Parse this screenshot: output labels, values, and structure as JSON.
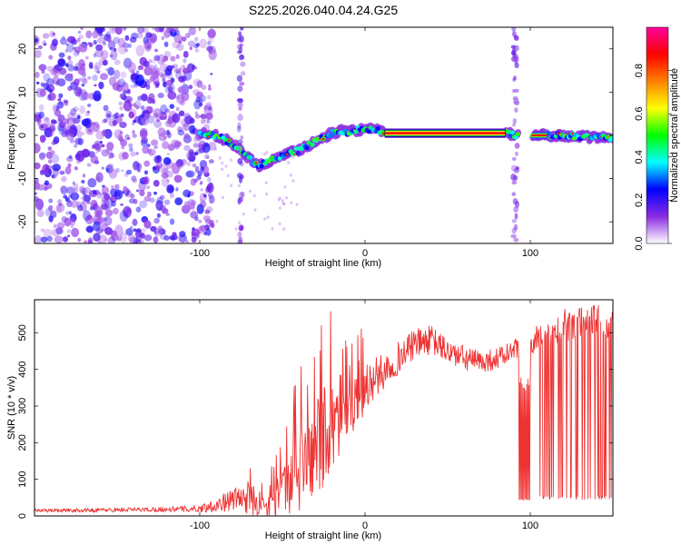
{
  "title": "S225.2026.040.04.24.G25",
  "chart_data": [
    {
      "type": "heatmap",
      "title": "S225.2026.040.04.24.G25",
      "xlabel": "Height of straight line (km)",
      "ylabel": "Frequency (Hz)",
      "xlim": [
        -200,
        150
      ],
      "ylim": [
        -25,
        25
      ],
      "xticks": [
        -100,
        0,
        100
      ],
      "yticks": [
        -20,
        -10,
        0,
        10,
        20
      ],
      "colorbar": {
        "label": "Normalized spectral amplitude",
        "range": [
          0,
          1
        ],
        "ticks": [
          0.0,
          0.2,
          0.4,
          0.6,
          0.8
        ],
        "tick_labels": [
          "0.0",
          "0.2",
          "0.4",
          "0.6",
          "0.8"
        ],
        "colormap": [
          "#ffffff",
          "#8a2be2",
          "#0000ff",
          "#00ffff",
          "#00ff00",
          "#ffff00",
          "#ff8000",
          "#ff0000",
          "#ff00a0"
        ]
      },
      "noise_region": {
        "x": [
          -200,
          -100
        ],
        "y": [
          -25,
          25
        ]
      },
      "ridge": {
        "x": [
          -100,
          -90,
          -82,
          -75,
          -70,
          -65,
          -60,
          -55,
          -50,
          -45,
          -40,
          -35,
          -30,
          -25,
          -20,
          -15,
          -10,
          -5,
          0,
          5,
          10,
          15,
          30,
          50,
          70,
          85,
          92,
          100,
          110,
          120,
          130,
          140,
          150
        ],
        "y": [
          0.5,
          0.0,
          -1.5,
          -3.5,
          -5.5,
          -7.0,
          -6.5,
          -5.5,
          -4.5,
          -4.0,
          -3.5,
          -2.5,
          -1.5,
          -0.5,
          0.5,
          1.0,
          0.8,
          1.2,
          1.5,
          1.2,
          1.0,
          0.5,
          0.5,
          0.5,
          0.5,
          0.5,
          0.0,
          0.0,
          0.0,
          0.0,
          -0.3,
          -0.5,
          -0.6
        ]
      },
      "strong_segment": {
        "x": [
          12,
          85
        ],
        "y": 0.5
      },
      "vertical_streaks": [
        {
          "x": -75
        },
        {
          "x": 91
        }
      ]
    },
    {
      "type": "line",
      "xlabel": "Height of straight line (km)",
      "ylabel": "SNR (10 * v/v)",
      "xlim": [
        -200,
        150
      ],
      "ylim": [
        0,
        590
      ],
      "xticks": [
        -100,
        0,
        100
      ],
      "yticks": [
        0,
        100,
        200,
        300,
        400,
        500
      ],
      "color": "#ee3333",
      "series": [
        {
          "name": "SNR",
          "x": [
            -200,
            -180,
            -160,
            -140,
            -120,
            -100,
            -90,
            -80,
            -70,
            -60,
            -55,
            -50,
            -45,
            -40,
            -35,
            -30,
            -25,
            -20,
            -15,
            -10,
            -5,
            0,
            5,
            10,
            20,
            30,
            40,
            50,
            60,
            70,
            80,
            85,
            90,
            100,
            110,
            120,
            130,
            140,
            150
          ],
          "y": [
            15,
            15,
            16,
            17,
            18,
            20,
            30,
            45,
            50,
            25,
            40,
            55,
            80,
            120,
            160,
            180,
            220,
            250,
            280,
            300,
            320,
            350,
            370,
            390,
            430,
            470,
            480,
            450,
            430,
            420,
            430,
            440,
            450,
            470,
            500,
            520,
            530,
            540,
            520
          ],
          "amplitude": [
            5,
            5,
            6,
            6,
            7,
            10,
            20,
            30,
            45,
            35,
            50,
            70,
            100,
            120,
            140,
            150,
            140,
            130,
            110,
            90,
            80,
            70,
            60,
            50,
            45,
            40,
            40,
            35,
            35,
            30,
            30,
            30,
            30,
            35,
            40,
            45,
            45,
            40,
            40
          ]
        }
      ],
      "dropouts": [
        {
          "x": [
            93,
            100
          ],
          "low": 40
        },
        {
          "x": [
            104,
            150
          ],
          "low": 45
        }
      ]
    }
  ]
}
